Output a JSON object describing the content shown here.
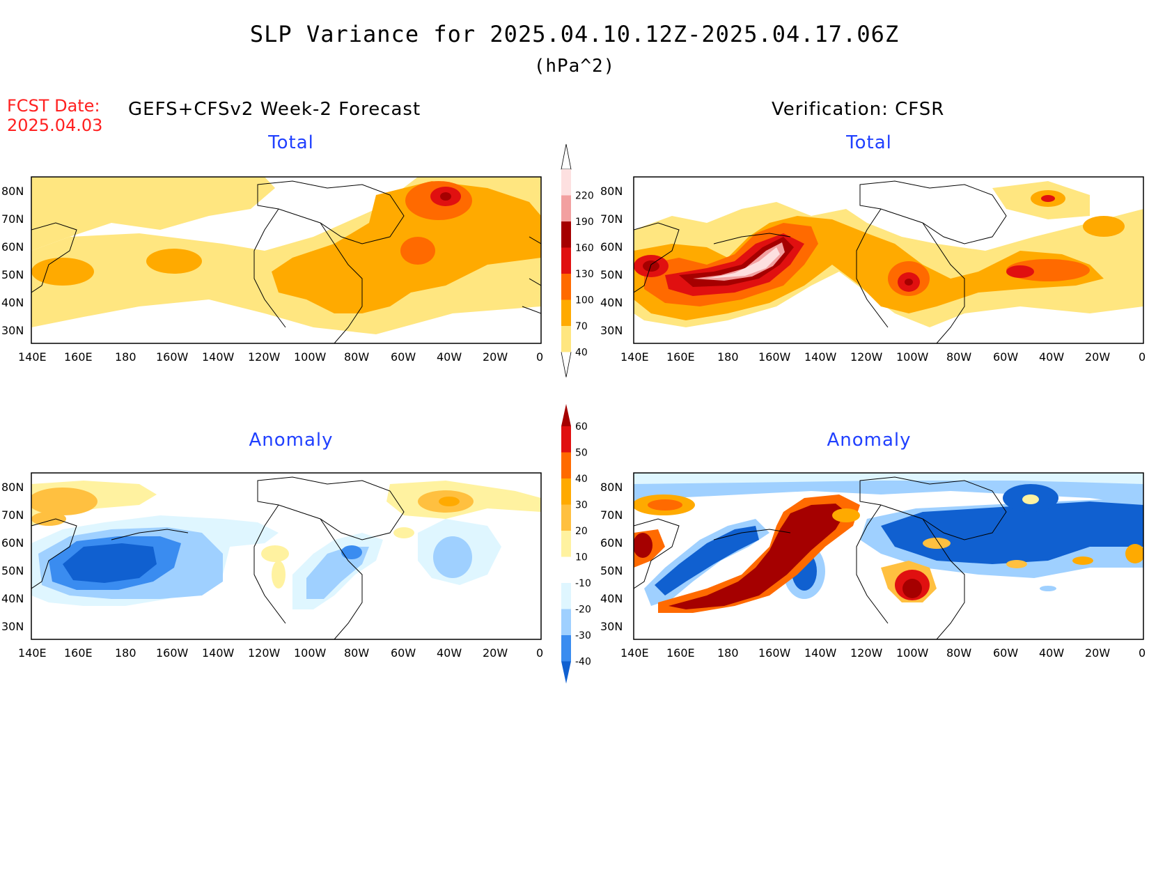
{
  "title": "SLP Variance for 2025.04.10.12Z-2025.04.17.06Z",
  "units": "(hPa^2)",
  "fcst_date_label": "FCST Date:",
  "fcst_date_value": "2025.04.03",
  "left_header": "GEFS+CFSv2 Week-2 Forecast",
  "right_header": "Verification: CFSR",
  "panel_titles": {
    "total": "Total",
    "anomaly": "Anomaly"
  },
  "lat_ticks": [
    "80N",
    "70N",
    "60N",
    "50N",
    "40N",
    "30N"
  ],
  "lon_ticks": [
    "140E",
    "160E",
    "180",
    "160W",
    "140W",
    "120W",
    "100W",
    "80W",
    "60W",
    "40W",
    "20W",
    "0"
  ],
  "total_colorbar": {
    "levels": [
      "40",
      "70",
      "100",
      "130",
      "160",
      "190",
      "220"
    ],
    "colors": [
      "#ffe680",
      "#ffaa00",
      "#ff6a00",
      "#e01010",
      "#a50000",
      "#f2a0a0",
      "#fde0e0"
    ]
  },
  "anomaly_colorbar": {
    "levels": [
      "60",
      "50",
      "40",
      "30",
      "20",
      "10",
      "-10",
      "-20",
      "-30",
      "-40"
    ],
    "colors": [
      "#a50000",
      "#e01010",
      "#ff6a00",
      "#ffaa00",
      "#ffc040",
      "#fff2a0",
      "#ffffff",
      "#dff6ff",
      "#9fd0ff",
      "#3a8cf0",
      "#1060d0"
    ]
  },
  "legend_colors": {
    "title_red": "#ff2020",
    "panel_title_blue": "#2040ff"
  }
}
